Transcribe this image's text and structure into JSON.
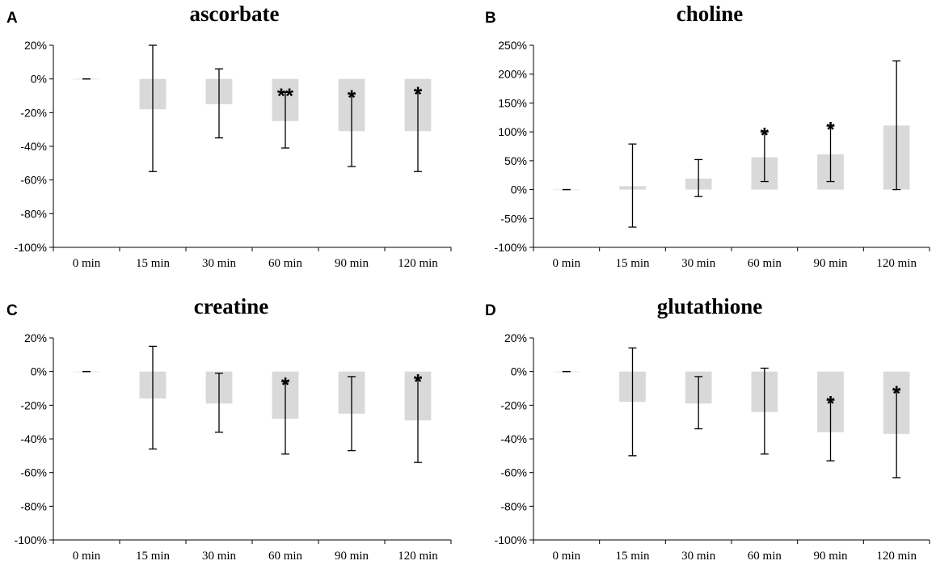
{
  "figure": {
    "background": "#ffffff",
    "bar_color": "#d9d9d9",
    "axis_color": "#000000"
  },
  "chart_data": [
    {
      "type": "bar",
      "panel": "A",
      "title": "ascorbate",
      "categories": [
        "0 min",
        "15 min",
        "30 min",
        "60 min",
        "90 min",
        "120 min"
      ],
      "values": [
        0,
        -18,
        -15,
        -25,
        -31,
        -31
      ],
      "error_low": [
        0,
        -55,
        -35,
        -41,
        -52,
        -55
      ],
      "error_high": [
        0,
        20,
        6,
        -8,
        -9,
        -7
      ],
      "significance": [
        "",
        "",
        "",
        "**",
        "*",
        "*"
      ],
      "ylim": [
        -100,
        20
      ],
      "yticks": [
        20,
        0,
        -20,
        -40,
        -60,
        -80,
        -100
      ],
      "ytick_labels": [
        "20%",
        "0%",
        "-20%",
        "-40%",
        "-60%",
        "-80%",
        "-100%"
      ],
      "xlabel": "",
      "ylabel": ""
    },
    {
      "type": "bar",
      "panel": "B",
      "title": "choline",
      "categories": [
        "0 min",
        "15 min",
        "30 min",
        "60 min",
        "90 min",
        "120 min"
      ],
      "values": [
        0,
        6,
        19,
        56,
        61,
        111
      ],
      "error_low": [
        0,
        -65,
        -12,
        14,
        14,
        0
      ],
      "error_high": [
        0,
        79,
        52,
        100,
        110,
        223
      ],
      "significance": [
        "",
        "",
        "",
        "*",
        "*",
        ""
      ],
      "ylim": [
        -100,
        250
      ],
      "yticks": [
        250,
        200,
        150,
        100,
        50,
        0,
        -50,
        -100
      ],
      "ytick_labels": [
        "250%",
        "200%",
        "150%",
        "100%",
        "50%",
        "0%",
        "-50%",
        "-100%"
      ],
      "xlabel": "",
      "ylabel": ""
    },
    {
      "type": "bar",
      "panel": "C",
      "title": "creatine",
      "categories": [
        "0 min",
        "15 min",
        "30 min",
        "60 min",
        "90 min",
        "120 min"
      ],
      "values": [
        0,
        -16,
        -19,
        -28,
        -25,
        -29
      ],
      "error_low": [
        0,
        -46,
        -36,
        -49,
        -47,
        -54
      ],
      "error_high": [
        0,
        15,
        -1,
        -6,
        -3,
        -4
      ],
      "significance": [
        "",
        "",
        "",
        "*",
        "",
        "*"
      ],
      "ylim": [
        -100,
        20
      ],
      "yticks": [
        20,
        0,
        -20,
        -40,
        -60,
        -80,
        -100
      ],
      "ytick_labels": [
        "20%",
        "0%",
        "-20%",
        "-40%",
        "-60%",
        "-80%",
        "-100%"
      ],
      "xlabel": "",
      "ylabel": ""
    },
    {
      "type": "bar",
      "panel": "D",
      "title": "glutathione",
      "categories": [
        "0 min",
        "15 min",
        "30 min",
        "60 min",
        "90 min",
        "120 min"
      ],
      "values": [
        0,
        -18,
        -19,
        -24,
        -36,
        -37
      ],
      "error_low": [
        0,
        -50,
        -34,
        -49,
        -53,
        -63
      ],
      "error_high": [
        0,
        14,
        -3,
        2,
        -17,
        -11
      ],
      "significance": [
        "",
        "",
        "",
        "",
        "*",
        "*"
      ],
      "ylim": [
        -100,
        20
      ],
      "yticks": [
        20,
        0,
        -20,
        -40,
        -60,
        -80,
        -100
      ],
      "ytick_labels": [
        "20%",
        "0%",
        "-20%",
        "-40%",
        "-60%",
        "-80%",
        "-100%"
      ],
      "xlabel": "",
      "ylabel": ""
    }
  ]
}
